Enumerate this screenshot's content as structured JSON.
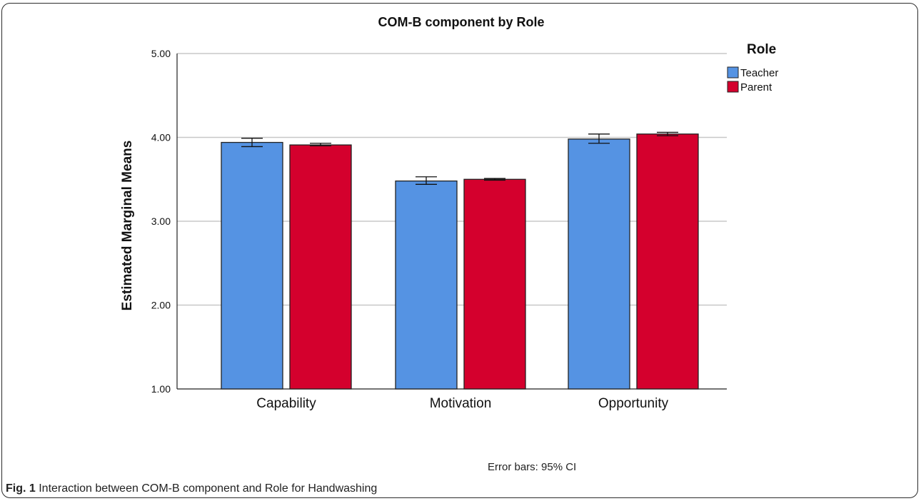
{
  "chart_data": {
    "type": "bar",
    "title": "COM-B component by Role",
    "xlabel": "",
    "ylabel": "Estimated Marginal Means",
    "ylim": [
      1.0,
      5.0
    ],
    "yticks": [
      "1.00",
      "2.00",
      "3.00",
      "4.00",
      "5.00"
    ],
    "grid": true,
    "categories": [
      "Capability",
      "Motivation",
      "Opportunity"
    ],
    "legend_title": "Role",
    "legend_position": "top-right",
    "series": [
      {
        "name": "Teacher",
        "color": "#5593e3",
        "values": [
          3.94,
          3.48,
          3.98
        ],
        "ci_low": [
          3.89,
          3.44,
          3.93
        ],
        "ci_high": [
          3.99,
          3.53,
          4.04
        ]
      },
      {
        "name": "Parent",
        "color": "#d4002d",
        "values": [
          3.91,
          3.5,
          4.04
        ],
        "ci_low": [
          3.9,
          3.49,
          4.02
        ],
        "ci_high": [
          3.93,
          3.51,
          4.06
        ]
      }
    ],
    "note": "Error bars: 95% CI"
  },
  "caption": {
    "label": "Fig. 1",
    "text": " Interaction between COM-B component and Role for Handwashing"
  }
}
